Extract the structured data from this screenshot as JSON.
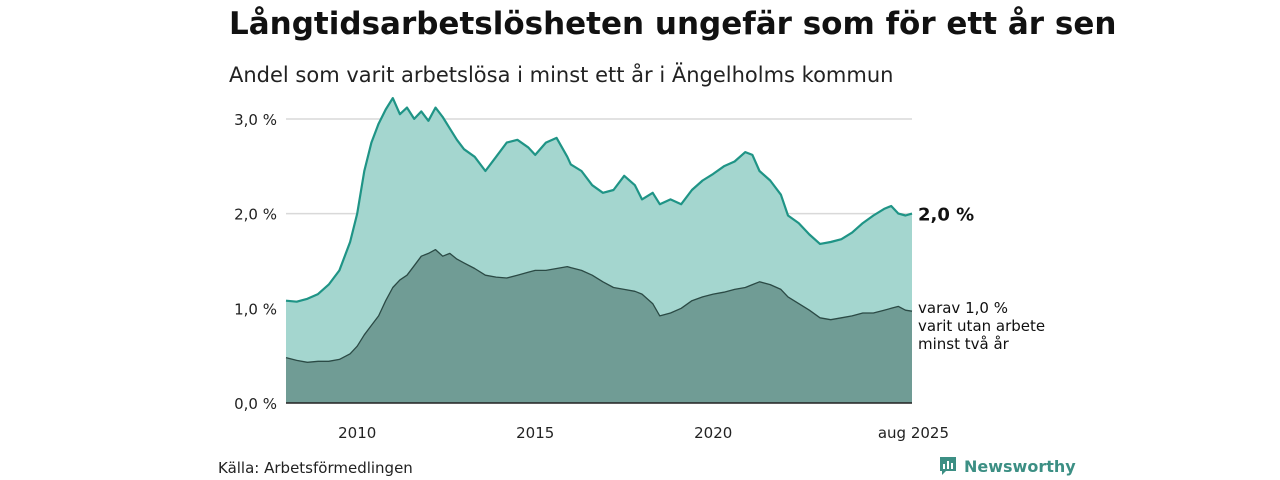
{
  "title": "Långtidsarbetslösheten ungefär som för ett år sen",
  "subtitle": "Andel som varit arbetslösa i minst ett år i Ängelholms kommun",
  "source": "Källa: Arbetsförmedlingen",
  "brand": "Newsworthy",
  "colors": {
    "outer_fill": "#a4d6cf",
    "outer_line": "#1f9486",
    "inner_fill": "#709c95",
    "inner_line": "#2b4a45",
    "grid": "#d9d9d9",
    "brand": "#3c8f84"
  },
  "chart_data": {
    "type": "area",
    "x_ticks": [
      "2010",
      "2015",
      "2020",
      "aug 2025"
    ],
    "x_tick_values": [
      2010,
      2015,
      2020,
      2025.583
    ],
    "y_ticks": [
      "0,0 %",
      "1,0 %",
      "2,0 %",
      "3,0 %"
    ],
    "y_tick_values": [
      0,
      1,
      2,
      3
    ],
    "ylim": [
      0,
      3.2
    ],
    "xlim": [
      2008.0,
      2025.583
    ],
    "grid": true,
    "series": [
      {
        "name": "minst ett år",
        "end_label": "2,0 %",
        "x": [
          2008.0,
          2008.3,
          2008.6,
          2008.9,
          2009.2,
          2009.5,
          2009.8,
          2010.0,
          2010.2,
          2010.4,
          2010.6,
          2010.8,
          2011.0,
          2011.2,
          2011.4,
          2011.6,
          2011.8,
          2012.0,
          2012.2,
          2012.4,
          2012.6,
          2012.8,
          2013.0,
          2013.3,
          2013.6,
          2013.9,
          2014.2,
          2014.5,
          2014.8,
          2015.0,
          2015.3,
          2015.6,
          2015.9,
          2016.0,
          2016.3,
          2016.6,
          2016.9,
          2017.2,
          2017.5,
          2017.8,
          2018.0,
          2018.3,
          2018.5,
          2018.8,
          2019.1,
          2019.4,
          2019.7,
          2020.0,
          2020.3,
          2020.6,
          2020.9,
          2021.1,
          2021.3,
          2021.6,
          2021.9,
          2022.1,
          2022.4,
          2022.7,
          2023.0,
          2023.3,
          2023.6,
          2023.9,
          2024.2,
          2024.5,
          2024.8,
          2025.0,
          2025.2,
          2025.4,
          2025.583
        ],
        "values": [
          1.08,
          1.07,
          1.1,
          1.15,
          1.25,
          1.4,
          1.7,
          2.0,
          2.45,
          2.75,
          2.95,
          3.1,
          3.22,
          3.05,
          3.12,
          3.0,
          3.08,
          2.98,
          3.12,
          3.02,
          2.9,
          2.78,
          2.68,
          2.6,
          2.45,
          2.6,
          2.75,
          2.78,
          2.7,
          2.62,
          2.75,
          2.8,
          2.6,
          2.52,
          2.45,
          2.3,
          2.22,
          2.25,
          2.4,
          2.3,
          2.15,
          2.22,
          2.1,
          2.15,
          2.1,
          2.25,
          2.35,
          2.42,
          2.5,
          2.55,
          2.65,
          2.62,
          2.45,
          2.35,
          2.2,
          1.98,
          1.9,
          1.78,
          1.68,
          1.7,
          1.73,
          1.8,
          1.9,
          1.98,
          2.05,
          2.08,
          2.0,
          1.98,
          2.0
        ]
      },
      {
        "name": "minst två år",
        "end_label": [
          "varav 1,0 %",
          "varit utan arbete",
          "minst två år"
        ],
        "x": [
          2008.0,
          2008.3,
          2008.6,
          2008.9,
          2009.2,
          2009.5,
          2009.8,
          2010.0,
          2010.2,
          2010.4,
          2010.6,
          2010.8,
          2011.0,
          2011.2,
          2011.4,
          2011.6,
          2011.8,
          2012.0,
          2012.2,
          2012.4,
          2012.6,
          2012.8,
          2013.0,
          2013.3,
          2013.6,
          2013.9,
          2014.2,
          2014.5,
          2014.8,
          2015.0,
          2015.3,
          2015.6,
          2015.9,
          2016.0,
          2016.3,
          2016.6,
          2016.9,
          2017.2,
          2017.5,
          2017.8,
          2018.0,
          2018.3,
          2018.5,
          2018.8,
          2019.1,
          2019.4,
          2019.7,
          2020.0,
          2020.3,
          2020.6,
          2020.9,
          2021.1,
          2021.3,
          2021.6,
          2021.9,
          2022.1,
          2022.4,
          2022.7,
          2023.0,
          2023.3,
          2023.6,
          2023.9,
          2024.2,
          2024.5,
          2024.8,
          2025.0,
          2025.2,
          2025.4,
          2025.583
        ],
        "values": [
          0.48,
          0.45,
          0.43,
          0.44,
          0.44,
          0.46,
          0.52,
          0.6,
          0.72,
          0.82,
          0.92,
          1.08,
          1.22,
          1.3,
          1.35,
          1.45,
          1.55,
          1.58,
          1.62,
          1.55,
          1.58,
          1.52,
          1.48,
          1.42,
          1.35,
          1.33,
          1.32,
          1.35,
          1.38,
          1.4,
          1.4,
          1.42,
          1.44,
          1.43,
          1.4,
          1.35,
          1.28,
          1.22,
          1.2,
          1.18,
          1.15,
          1.05,
          0.92,
          0.95,
          1.0,
          1.08,
          1.12,
          1.15,
          1.17,
          1.2,
          1.22,
          1.25,
          1.28,
          1.25,
          1.2,
          1.12,
          1.05,
          0.98,
          0.9,
          0.88,
          0.9,
          0.92,
          0.95,
          0.95,
          0.98,
          1.0,
          1.02,
          0.98,
          0.97
        ]
      }
    ]
  }
}
